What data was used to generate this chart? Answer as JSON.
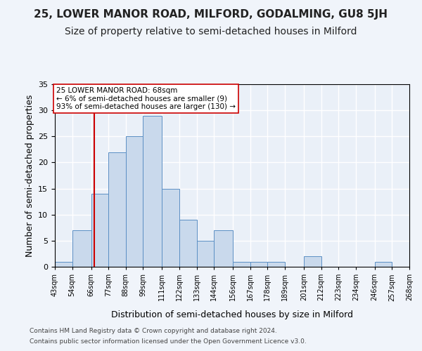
{
  "title1": "25, LOWER MANOR ROAD, MILFORD, GODALMING, GU8 5JH",
  "title2": "Size of property relative to semi-detached houses in Milford",
  "xlabel": "Distribution of semi-detached houses by size in Milford",
  "ylabel": "Number of semi-detached properties",
  "bin_labels": [
    "43sqm",
    "54sqm",
    "66sqm",
    "77sqm",
    "88sqm",
    "99sqm",
    "111sqm",
    "122sqm",
    "133sqm",
    "144sqm",
    "156sqm",
    "167sqm",
    "178sqm",
    "189sqm",
    "201sqm",
    "212sqm",
    "223sqm",
    "234sqm",
    "246sqm",
    "257sqm",
    "268sqm"
  ],
  "bin_edges": [
    43,
    54,
    66,
    77,
    88,
    99,
    111,
    122,
    133,
    144,
    156,
    167,
    178,
    189,
    201,
    212,
    223,
    234,
    246,
    257,
    268
  ],
  "bar_heights": [
    1,
    7,
    14,
    22,
    25,
    29,
    15,
    9,
    5,
    7,
    1,
    1,
    1,
    0,
    2,
    0,
    0,
    0,
    1,
    0
  ],
  "bar_color": "#c9d9ec",
  "bar_edge_color": "#5b8fc4",
  "property_value": 68,
  "vline_color": "#cc0000",
  "annotation_text": "25 LOWER MANOR ROAD: 68sqm\n← 6% of semi-detached houses are smaller (9)\n93% of semi-detached houses are larger (130) →",
  "annotation_box_color": "#ffffff",
  "annotation_box_edge": "#cc0000",
  "ylim": [
    0,
    35
  ],
  "yticks": [
    0,
    5,
    10,
    15,
    20,
    25,
    30,
    35
  ],
  "footer1": "Contains HM Land Registry data © Crown copyright and database right 2024.",
  "footer2": "Contains public sector information licensed under the Open Government Licence v3.0.",
  "bg_color": "#f0f4fa",
  "plot_bg_color": "#eaf0f8",
  "grid_color": "#ffffff",
  "title1_fontsize": 11,
  "title2_fontsize": 10,
  "xlabel_fontsize": 9,
  "ylabel_fontsize": 9
}
